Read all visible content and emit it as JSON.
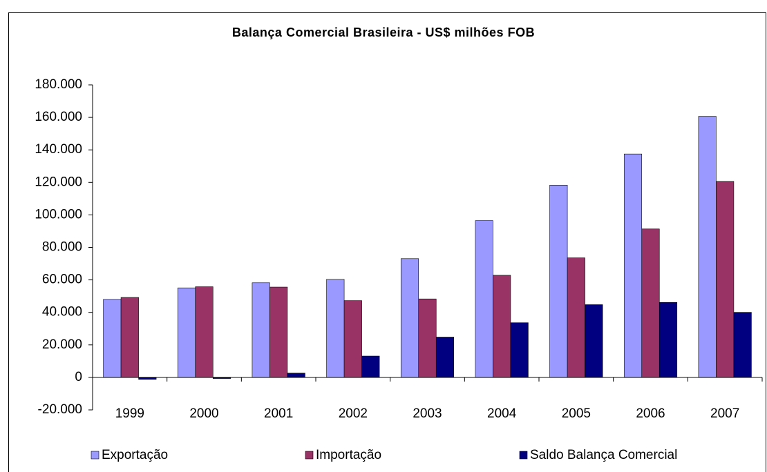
{
  "chart_data": {
    "type": "bar",
    "title": "Balança Comercial Brasileira - US$ milhões FOB",
    "categories": [
      "1999",
      "2000",
      "2001",
      "2002",
      "2003",
      "2004",
      "2005",
      "2006",
      "2007"
    ],
    "series": [
      {
        "name": "Exportação",
        "color": "#9999ff",
        "values": [
          48011,
          55086,
          58223,
          60362,
          73084,
          96475,
          118308,
          137470,
          160649
        ]
      },
      {
        "name": "Importação",
        "color": "#993366",
        "values": [
          49210,
          55783,
          55572,
          47240,
          48290,
          62835,
          73551,
          91351,
          120617
        ]
      },
      {
        "name": "Saldo Balança Comercial",
        "color": "#000080",
        "values": [
          -1199,
          -698,
          2650,
          13121,
          24794,
          33641,
          44757,
          46119,
          40032
        ]
      }
    ],
    "ylim": [
      -20000,
      180000
    ],
    "yticks": [
      {
        "value": -20000,
        "label": "-20.000"
      },
      0,
      {
        "value": 20000,
        "label": "20.000"
      },
      {
        "value": 40000,
        "label": "40.000"
      },
      {
        "value": 60000,
        "label": "60.000"
      },
      {
        "value": 80000,
        "label": "80.000"
      },
      {
        "value": 100000,
        "label": "100.000"
      },
      {
        "value": 120000,
        "label": "120.000"
      },
      {
        "value": 140000,
        "label": "140.000"
      },
      {
        "value": 160000,
        "label": "160.000"
      },
      {
        "value": 180000,
        "label": "180.000"
      }
    ],
    "legend": "bottom"
  }
}
